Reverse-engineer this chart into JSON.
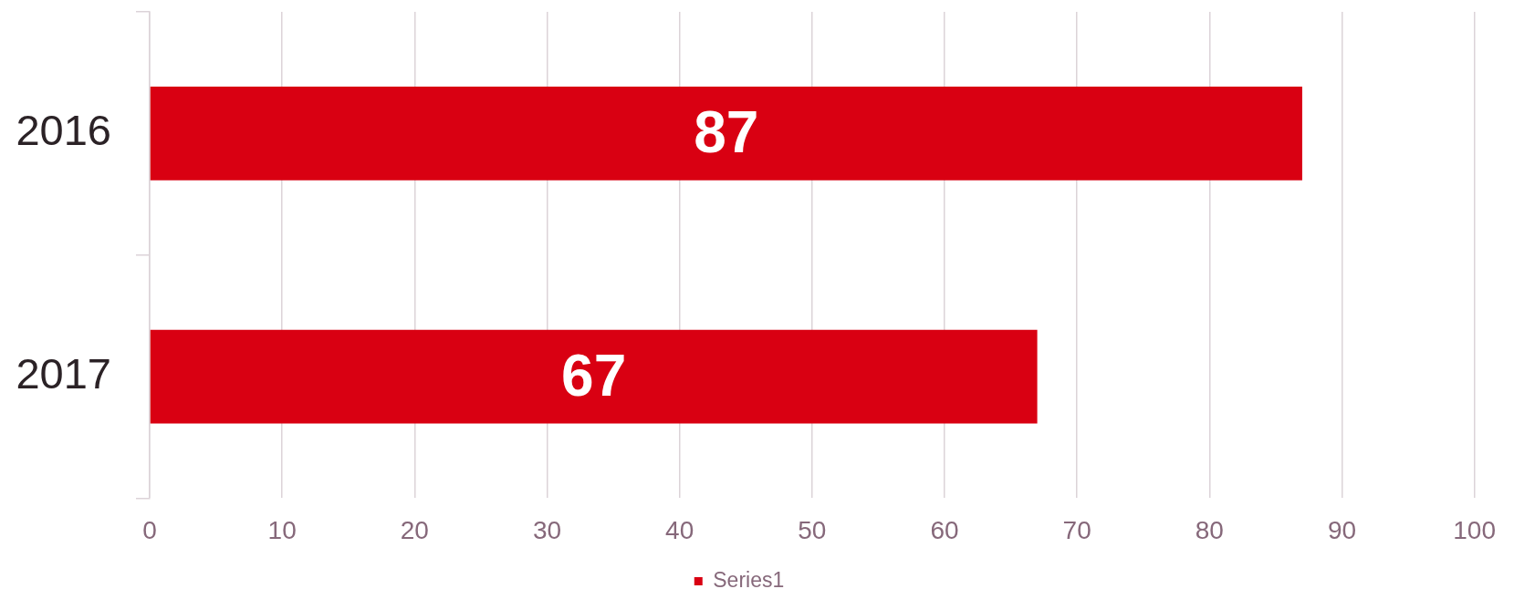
{
  "chart_data": {
    "type": "bar",
    "orientation": "horizontal",
    "categories": [
      "2016",
      "2017"
    ],
    "series": [
      {
        "name": "Series1",
        "color": "#d90012",
        "values": [
          87,
          67
        ]
      }
    ],
    "xlim": [
      0,
      100
    ],
    "xticks": [
      0,
      10,
      20,
      30,
      40,
      50,
      60,
      70,
      80,
      90,
      100
    ],
    "grid": "x",
    "legend": "bottom",
    "data_labels": true
  }
}
